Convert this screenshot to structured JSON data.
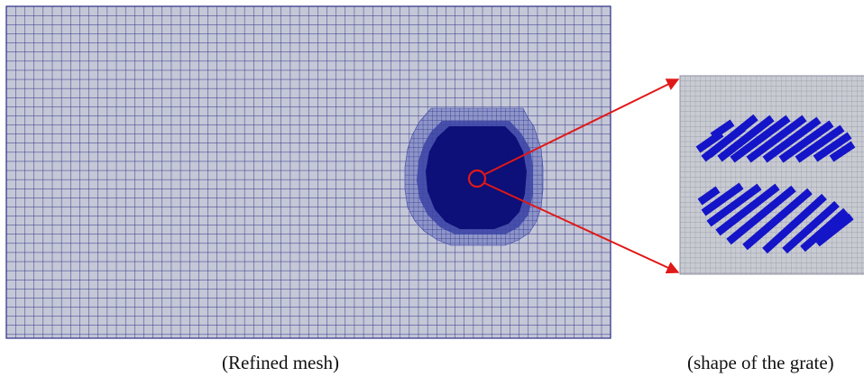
{
  "captions": {
    "left": "(Refined mesh)",
    "right": "(shape of the grate)"
  },
  "colors": {
    "mesh_background": "#c4c7d6",
    "mesh_line": "#2b2b86",
    "refine_dark": "#0c1078",
    "refine_medium": "#3b43a6",
    "refine_light": "#8e96c9",
    "zoom_background": "#c9cbd2",
    "zoom_grid": "#8c8fa0",
    "grate_bar": "#1414c8",
    "annotation": "#e01818"
  },
  "icons": {
    "zoom_marker": "circle-highlight-icon",
    "zoom_arrows": "arrow-icon"
  }
}
